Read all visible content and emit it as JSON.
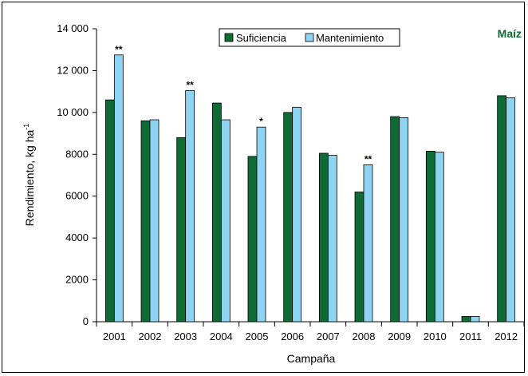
{
  "chart_data": {
    "type": "bar",
    "title": "Maíz",
    "xlabel": "Campaña",
    "ylabel": "Rendimiento, kg ha",
    "ylabel_sup": "-1",
    "ylim": [
      0,
      14000
    ],
    "yticks": [
      {
        "value": 0,
        "label": "0"
      },
      {
        "value": 2000,
        "label": "2000"
      },
      {
        "value": 4000,
        "label": "4000"
      },
      {
        "value": 6000,
        "label": "6000"
      },
      {
        "value": 8000,
        "label": "8000"
      },
      {
        "value": 10000,
        "label": "10 000"
      },
      {
        "value": 12000,
        "label": "12 000"
      },
      {
        "value": 14000,
        "label": "14 000"
      }
    ],
    "grid": false,
    "legend_position": "top-center",
    "categories": [
      "2001",
      "2002",
      "2003",
      "2004",
      "2005",
      "2006",
      "2007",
      "2008",
      "2009",
      "2010",
      "2011",
      "2012"
    ],
    "series": [
      {
        "name": "Suficiencia",
        "color": "#0f6b35",
        "values": [
          10600,
          9600,
          8800,
          10450,
          7900,
          10000,
          8050,
          6200,
          9800,
          8150,
          250,
          10800
        ]
      },
      {
        "name": "Mantenimiento",
        "color": "#8ed3f2",
        "values": [
          12750,
          9650,
          11050,
          9650,
          9300,
          10250,
          7950,
          7500,
          9750,
          8100,
          250,
          10700
        ]
      }
    ],
    "annotations": [
      "**",
      "",
      "**",
      "",
      "*",
      "",
      "",
      "**",
      "",
      "",
      "",
      ""
    ],
    "title_color": "#0f6b35"
  }
}
